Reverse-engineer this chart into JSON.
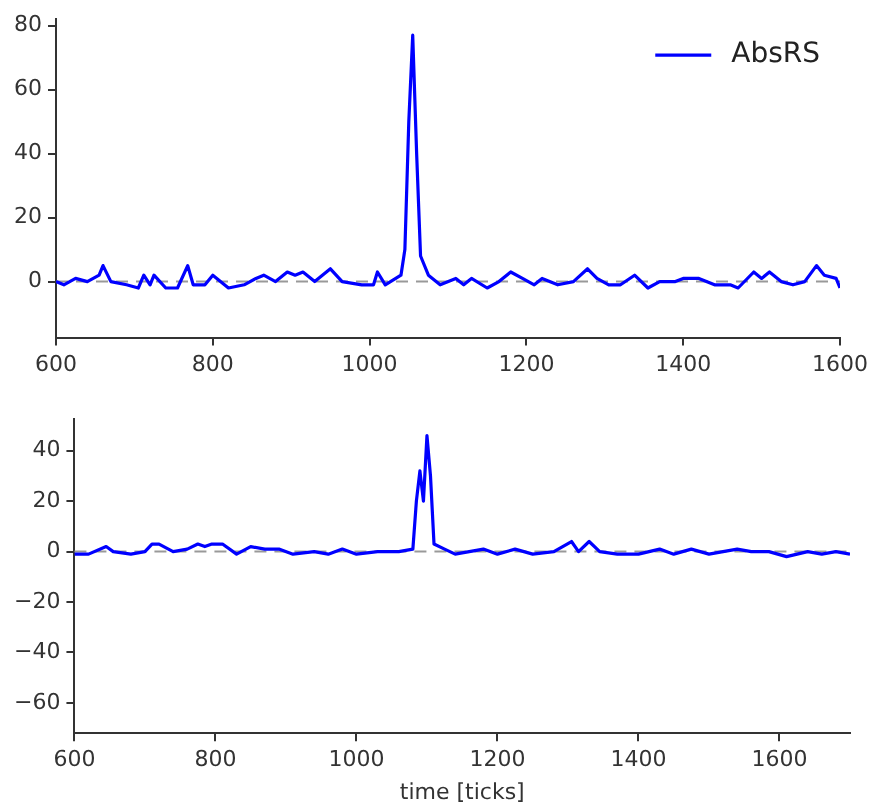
{
  "chart_data": [
    {
      "type": "line",
      "xlim": [
        600,
        1600
      ],
      "xticks": [
        600,
        800,
        1000,
        1200,
        1400,
        1600
      ],
      "ylim": [
        -17.5,
        82
      ],
      "yticks": [
        0,
        20,
        40,
        60,
        80
      ],
      "grid": false,
      "legend": "top right",
      "marker": "none",
      "line_style": "solid",
      "ref_lines": [
        {
          "axis": "y",
          "value": 0,
          "color": "#999999",
          "line_style": "dashed"
        }
      ],
      "series": [
        {
          "name": "AbsRS",
          "color": "#0000ff",
          "x": [
            600,
            610,
            625,
            640,
            655,
            660,
            670,
            690,
            705,
            712,
            720,
            725,
            740,
            755,
            768,
            775,
            790,
            800,
            820,
            840,
            855,
            865,
            880,
            895,
            905,
            915,
            930,
            950,
            965,
            990,
            1005,
            1010,
            1020,
            1040,
            1045,
            1050,
            1055,
            1060,
            1065,
            1075,
            1090,
            1110,
            1120,
            1130,
            1150,
            1165,
            1180,
            1195,
            1210,
            1220,
            1240,
            1260,
            1278,
            1290,
            1305,
            1320,
            1338,
            1355,
            1370,
            1390,
            1400,
            1420,
            1440,
            1460,
            1470,
            1490,
            1500,
            1510,
            1525,
            1540,
            1555,
            1570,
            1580,
            1595,
            1600
          ],
          "values": [
            0,
            -1,
            1,
            0,
            2,
            5,
            0,
            -1,
            -2,
            2,
            -1,
            2,
            -2,
            -2,
            5,
            -1,
            -1,
            2,
            -2,
            -1,
            1,
            2,
            0,
            3,
            2,
            3,
            0,
            4,
            0,
            -1,
            -1,
            3,
            -1,
            2,
            10,
            50,
            77,
            40,
            8,
            2,
            -1,
            1,
            -1,
            1,
            -2,
            0,
            3,
            1,
            -1,
            1,
            -1,
            0,
            4,
            1,
            -1,
            -1,
            2,
            -2,
            0,
            0,
            1,
            1,
            -1,
            -1,
            -2,
            3,
            1,
            3,
            0,
            -1,
            0,
            5,
            2,
            1,
            -2
          ]
        }
      ]
    },
    {
      "type": "line",
      "xlabel": "time [ticks]",
      "xlim": [
        600,
        1700
      ],
      "xticks": [
        600,
        800,
        1000,
        1200,
        1400,
        1600
      ],
      "ylim": [
        -72,
        52.5
      ],
      "yticks": [
        -60,
        -40,
        -20,
        0,
        20,
        40
      ],
      "grid": false,
      "legend": false,
      "marker": "none",
      "line_style": "solid",
      "ref_lines": [
        {
          "axis": "y",
          "value": 0,
          "color": "#999999",
          "line_style": "dashed"
        }
      ],
      "series": [
        {
          "color": "#0000ff",
          "x": [
            600,
            620,
            645,
            655,
            680,
            700,
            710,
            720,
            740,
            760,
            775,
            785,
            795,
            810,
            830,
            850,
            870,
            890,
            910,
            940,
            960,
            980,
            1000,
            1030,
            1060,
            1080,
            1085,
            1090,
            1095,
            1100,
            1105,
            1110,
            1125,
            1140,
            1160,
            1180,
            1200,
            1225,
            1250,
            1280,
            1305,
            1315,
            1330,
            1345,
            1370,
            1400,
            1430,
            1450,
            1475,
            1500,
            1540,
            1560,
            1585,
            1610,
            1640,
            1660,
            1680,
            1700
          ],
          "values": [
            -1,
            -1,
            2,
            0,
            -1,
            0,
            3,
            3,
            0,
            1,
            3,
            2,
            3,
            3,
            -1,
            2,
            1,
            1,
            -1,
            0,
            -1,
            1,
            -1,
            0,
            0,
            1,
            20,
            32,
            20,
            46,
            30,
            3,
            1,
            -1,
            0,
            1,
            -1,
            1,
            -1,
            0,
            4,
            0,
            4,
            0,
            -1,
            -1,
            1,
            -1,
            1,
            -1,
            1,
            0,
            0,
            -2,
            0,
            -1,
            0,
            -1
          ]
        }
      ]
    }
  ]
}
